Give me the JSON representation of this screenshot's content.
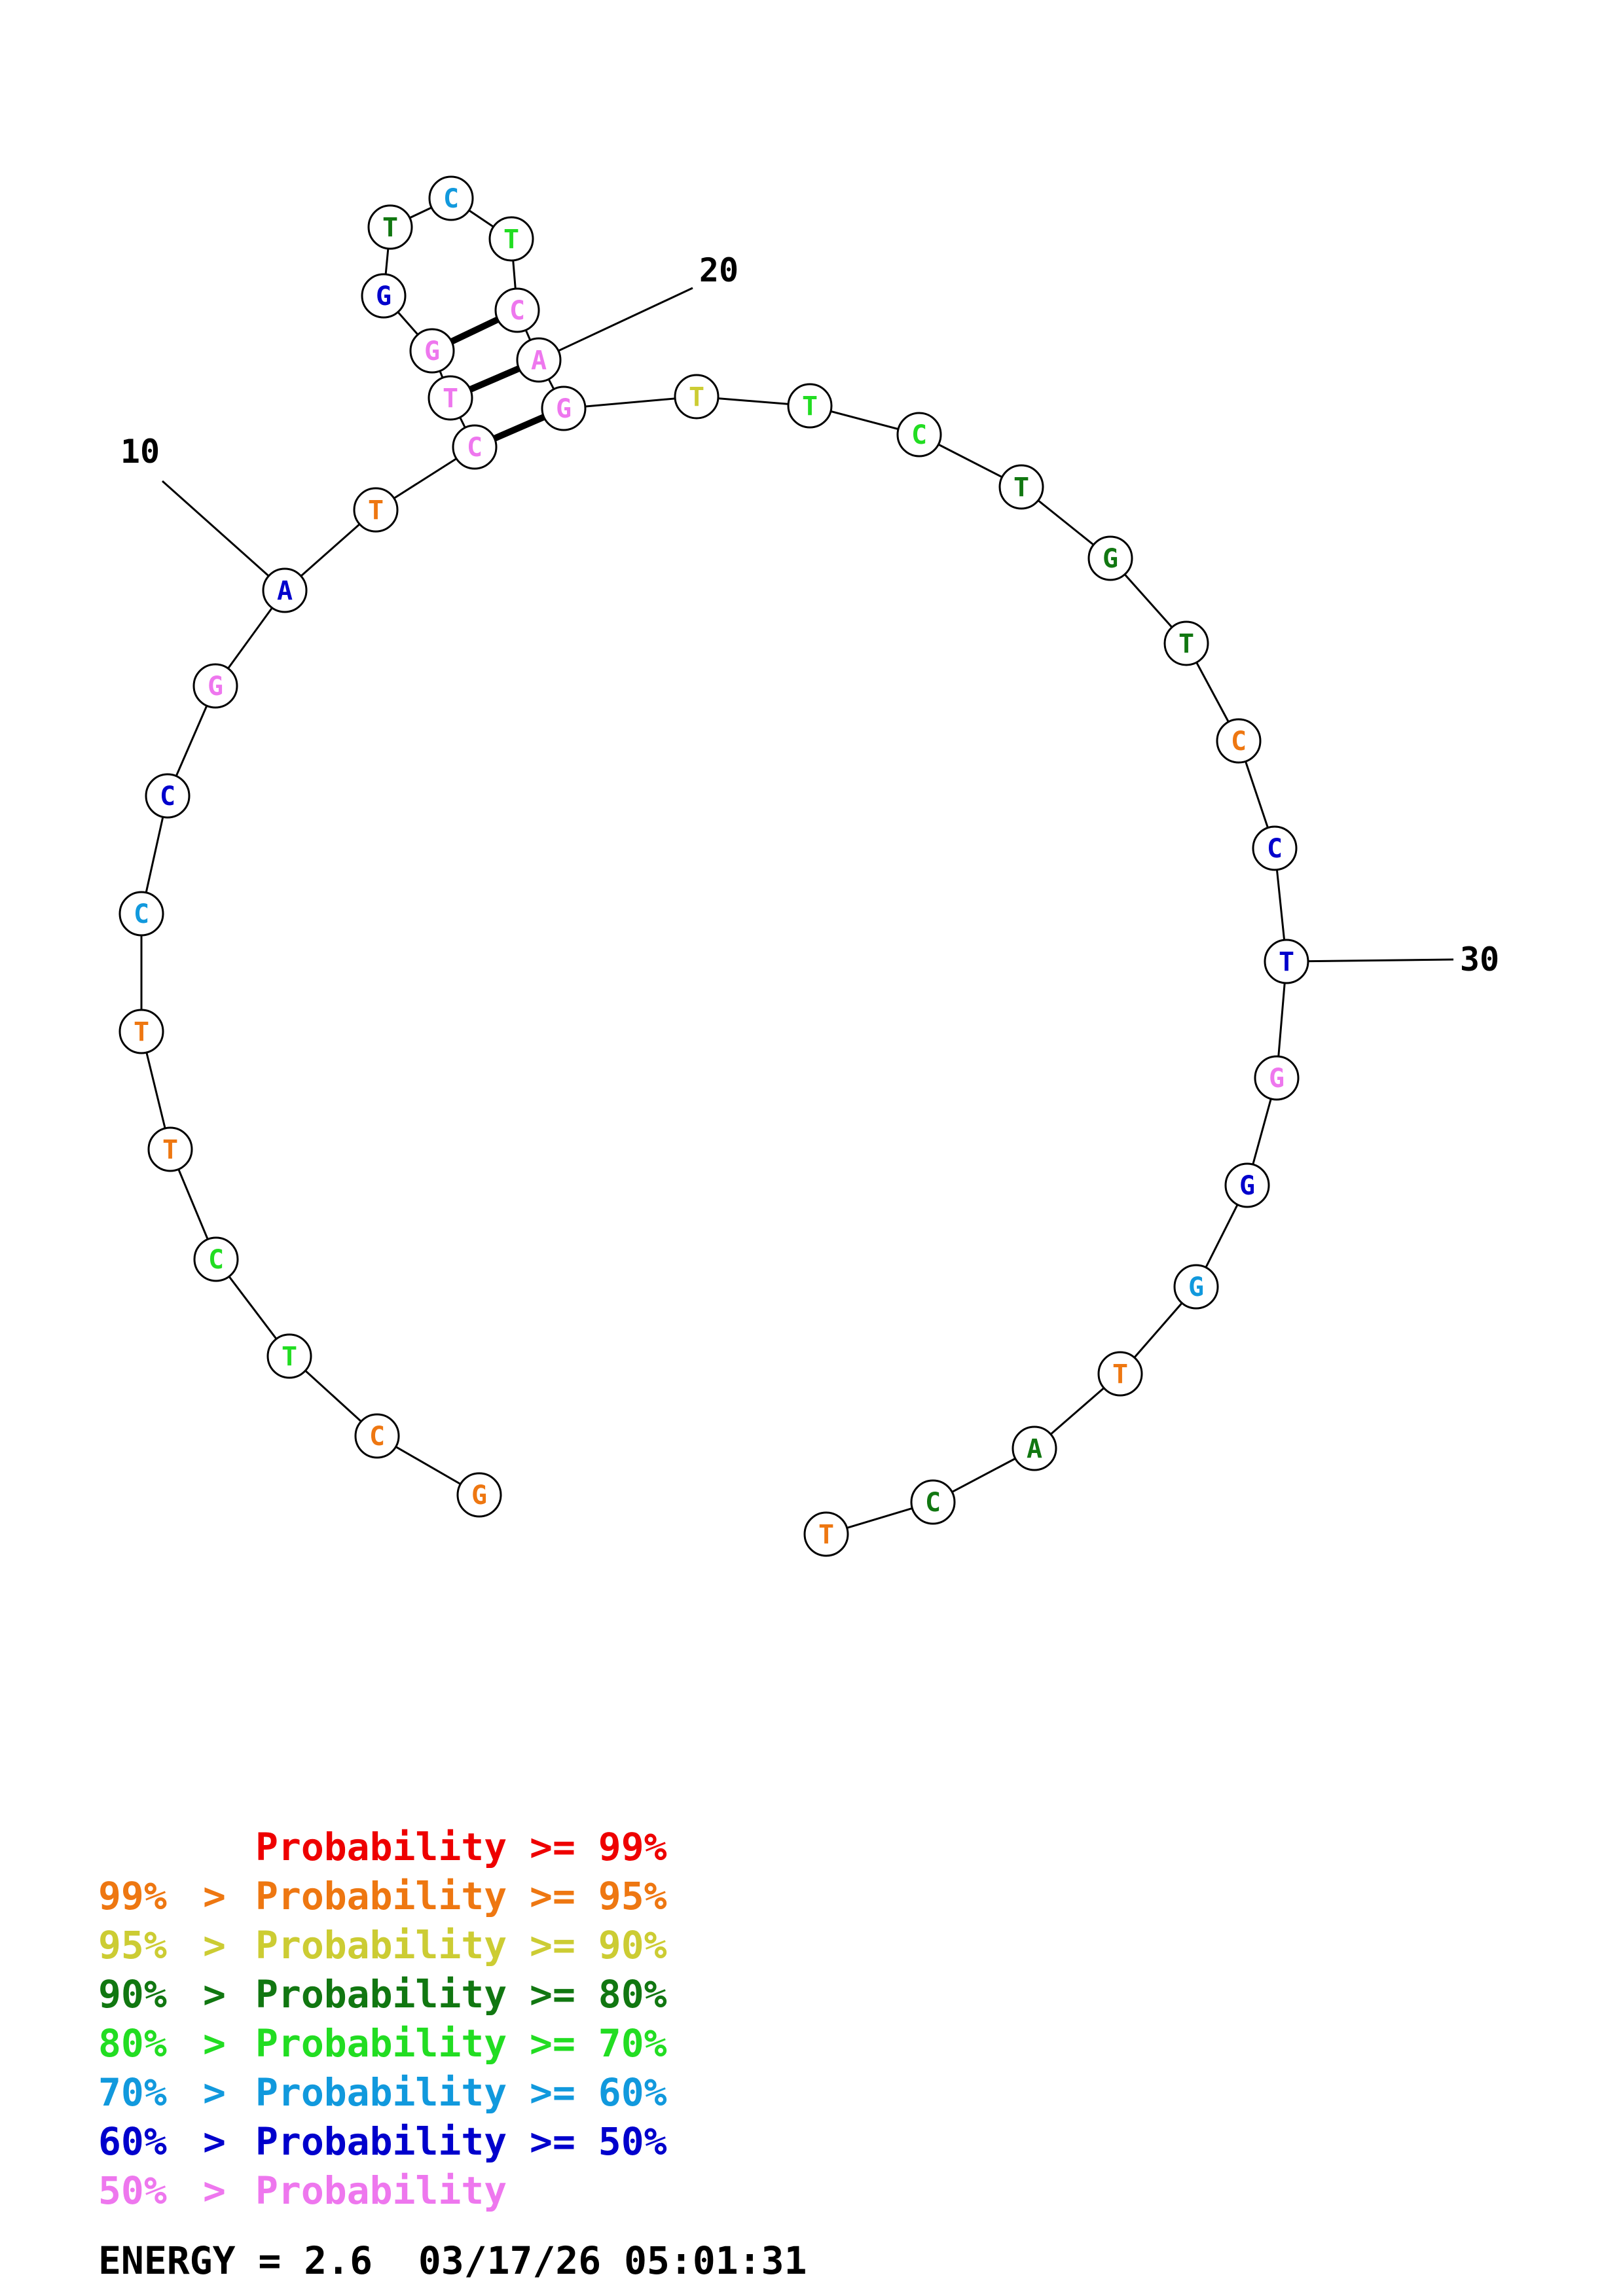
{
  "colors": {
    "p99": "#ee0000",
    "p95": "#ee7711",
    "p90": "#cccc33",
    "p80": "#117711",
    "p70": "#22dd22",
    "p60": "#1199dd",
    "p50": "#0000cc",
    "plt50": "#ee77ee"
  },
  "sequence": [
    {
      "base": "G",
      "prob": "p95"
    },
    {
      "base": "C",
      "prob": "p95"
    },
    {
      "base": "T",
      "prob": "p70"
    },
    {
      "base": "C",
      "prob": "p70"
    },
    {
      "base": "T",
      "prob": "p95"
    },
    {
      "base": "T",
      "prob": "p95"
    },
    {
      "base": "C",
      "prob": "p60"
    },
    {
      "base": "C",
      "prob": "p50"
    },
    {
      "base": "G",
      "prob": "plt50"
    },
    {
      "base": "A",
      "prob": "p50"
    },
    {
      "base": "T",
      "prob": "p95"
    },
    {
      "base": "C",
      "prob": "plt50"
    },
    {
      "base": "T",
      "prob": "plt50"
    },
    {
      "base": "G",
      "prob": "plt50"
    },
    {
      "base": "G",
      "prob": "p50"
    },
    {
      "base": "T",
      "prob": "p80"
    },
    {
      "base": "C",
      "prob": "p60"
    },
    {
      "base": "T",
      "prob": "p70"
    },
    {
      "base": "C",
      "prob": "plt50"
    },
    {
      "base": "A",
      "prob": "plt50"
    },
    {
      "base": "G",
      "prob": "plt50"
    },
    {
      "base": "T",
      "prob": "p90"
    },
    {
      "base": "T",
      "prob": "p70"
    },
    {
      "base": "C",
      "prob": "p70"
    },
    {
      "base": "T",
      "prob": "p80"
    },
    {
      "base": "G",
      "prob": "p80"
    },
    {
      "base": "T",
      "prob": "p80"
    },
    {
      "base": "C",
      "prob": "p95"
    },
    {
      "base": "C",
      "prob": "p50"
    },
    {
      "base": "T",
      "prob": "p50"
    },
    {
      "base": "G",
      "prob": "plt50"
    },
    {
      "base": "G",
      "prob": "p50"
    },
    {
      "base": "G",
      "prob": "p60"
    },
    {
      "base": "T",
      "prob": "p95"
    },
    {
      "base": "A",
      "prob": "p80"
    },
    {
      "base": "C",
      "prob": "p80"
    },
    {
      "base": "T",
      "prob": "p95"
    }
  ],
  "pairs": [
    [
      12,
      21
    ],
    [
      13,
      20
    ],
    [
      14,
      19
    ]
  ],
  "index_labels": [
    {
      "label": "10",
      "base": 10
    },
    {
      "label": "20",
      "base": 20
    },
    {
      "label": "30",
      "base": 30
    }
  ],
  "legend": [
    {
      "left": "",
      "mid": "",
      "right": "Probability >= 99%",
      "color": "p99"
    },
    {
      "left": "99%",
      "mid": ">",
      "right": "Probability >= 95%",
      "color": "p95"
    },
    {
      "left": "95%",
      "mid": ">",
      "right": "Probability >= 90%",
      "color": "p90"
    },
    {
      "left": "90%",
      "mid": ">",
      "right": "Probability >= 80%",
      "color": "p80"
    },
    {
      "left": "80%",
      "mid": ">",
      "right": "Probability >= 70%",
      "color": "p70"
    },
    {
      "left": "70%",
      "mid": ">",
      "right": "Probability >= 60%",
      "color": "p60"
    },
    {
      "left": "60%",
      "mid": ">",
      "right": "Probability >= 50%",
      "color": "p50"
    },
    {
      "left": "50%",
      "mid": ">",
      "right": "Probability",
      "color": "plt50"
    }
  ],
  "energy_text": "ENERGY = 2.6  03/17/26 05:01:31"
}
